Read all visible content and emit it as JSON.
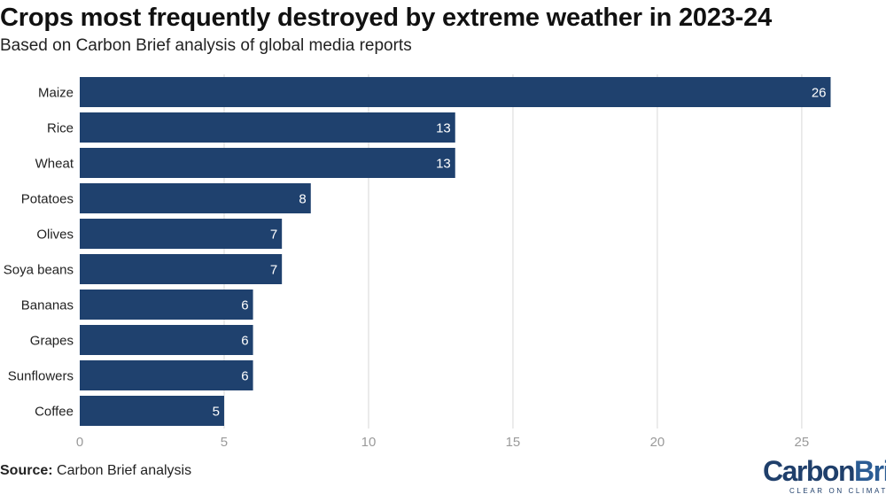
{
  "header": {
    "title": "Crops most frequently destroyed by extreme weather in 2023-24",
    "subtitle": "Based on Carbon Brief analysis of global media reports"
  },
  "footer": {
    "source_label": "Source:",
    "source_text": "Carbon Brief analysis"
  },
  "logo": {
    "word_carbon": "Carbon",
    "word_brief": "Brief",
    "tagline": "CLEAR ON CLIMATE"
  },
  "colors": {
    "bar": "#1f416e",
    "grid": "#e3e3e3",
    "bar_label": "#ffffff",
    "axis_text": "#9a9a9a",
    "category_text": "#222222"
  },
  "chart_data": {
    "type": "bar",
    "orientation": "horizontal",
    "title": "Crops most frequently destroyed by extreme weather in 2023-24",
    "subtitle": "Based on Carbon Brief analysis of global media reports",
    "categories": [
      "Maize",
      "Rice",
      "Wheat",
      "Potatoes",
      "Olives",
      "Soya beans",
      "Bananas",
      "Grapes",
      "Sunflowers",
      "Coffee"
    ],
    "values": [
      26,
      13,
      13,
      8,
      7,
      7,
      6,
      6,
      6,
      5
    ],
    "xlim": [
      0,
      27
    ],
    "xticks": [
      0,
      5,
      10,
      15,
      20,
      25
    ],
    "grid": true,
    "data_labels": true,
    "legend": "none"
  }
}
